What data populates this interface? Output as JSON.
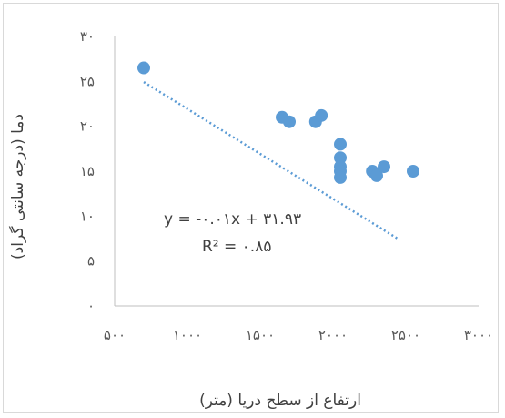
{
  "chart_data": {
    "type": "scatter",
    "title": "",
    "xlabel": "ارتفاع از سطح دریا (متر)",
    "ylabel": "دما (درجه سانتی گراد)",
    "xlim": [
      500,
      3000
    ],
    "ylim": [
      0,
      30
    ],
    "x_ticks": [
      500,
      1000,
      1500,
      2000,
      2500,
      3000
    ],
    "x_tick_labels": [
      "۵۰۰",
      "۱۰۰۰",
      "۱۵۰۰",
      "۲۰۰۰",
      "۲۵۰۰",
      "۳۰۰۰"
    ],
    "y_ticks": [
      0,
      5,
      10,
      15,
      20,
      25,
      30
    ],
    "y_tick_labels": [
      "۰",
      "۵",
      "۱۰",
      "۱۵",
      "۲۰",
      "۲۵",
      "۳۰"
    ],
    "grid": false,
    "legend": "none",
    "marker_color": "#5b9bd5",
    "trendline_color": "#5b9bd5",
    "trendline": {
      "slope": -0.01,
      "intercept": 31.93,
      "x_start": 700,
      "x_end": 2450
    },
    "equation_label": "y = -۰.۰۱x + ۳۱.۹۳",
    "r2_label": "R² = ۰.۸۵",
    "points": [
      {
        "x": 700,
        "y": 26.5
      },
      {
        "x": 1650,
        "y": 21.0
      },
      {
        "x": 1700,
        "y": 20.5
      },
      {
        "x": 1880,
        "y": 20.5
      },
      {
        "x": 1920,
        "y": 21.2
      },
      {
        "x": 2050,
        "y": 18.0
      },
      {
        "x": 2050,
        "y": 16.5
      },
      {
        "x": 2050,
        "y": 15.5
      },
      {
        "x": 2050,
        "y": 15.0
      },
      {
        "x": 2050,
        "y": 14.3
      },
      {
        "x": 2270,
        "y": 15.0
      },
      {
        "x": 2300,
        "y": 14.5
      },
      {
        "x": 2350,
        "y": 15.5
      },
      {
        "x": 2550,
        "y": 15.0
      }
    ]
  }
}
